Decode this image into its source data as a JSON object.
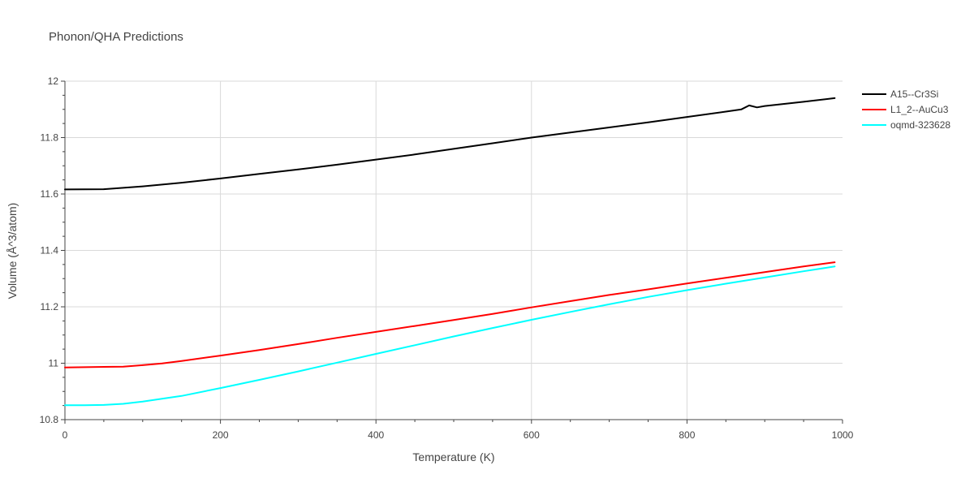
{
  "chart_data": {
    "type": "line",
    "title": "Phonon/QHA Predictions",
    "xlabel": "Temperature (K)",
    "ylabel": "Volume (Å^3/atom)",
    "xlim": [
      0,
      1000
    ],
    "ylim": [
      10.8,
      12
    ],
    "x_ticks": [
      0,
      200,
      400,
      600,
      800,
      1000
    ],
    "y_ticks": [
      10.8,
      11,
      11.2,
      11.4,
      11.6,
      11.8,
      12
    ],
    "x_tick_labels": [
      "0",
      "200",
      "400",
      "600",
      "800",
      "1000"
    ],
    "y_tick_labels": [
      "10.8",
      "11",
      "11.2",
      "11.4",
      "11.6",
      "11.8",
      "12"
    ],
    "grid": true,
    "legend": "right",
    "series": [
      {
        "name": "A15--Cr3Si",
        "color": "#000000",
        "x": [
          0,
          50,
          100,
          150,
          200,
          250,
          300,
          350,
          400,
          450,
          500,
          550,
          600,
          650,
          700,
          750,
          800,
          850,
          870,
          880,
          890,
          900,
          950,
          990
        ],
        "y": [
          11.616,
          11.617,
          11.627,
          11.64,
          11.655,
          11.671,
          11.687,
          11.704,
          11.722,
          11.74,
          11.76,
          11.78,
          11.8,
          11.818,
          11.836,
          11.854,
          11.873,
          11.892,
          11.9,
          11.914,
          11.907,
          11.912,
          11.927,
          11.94
        ]
      },
      {
        "name": "L1_2--AuCu3",
        "color": "#ff0000",
        "x": [
          0,
          25,
          50,
          75,
          100,
          125,
          150,
          200,
          250,
          300,
          350,
          400,
          450,
          500,
          550,
          600,
          650,
          700,
          750,
          800,
          850,
          900,
          950,
          990
        ],
        "y": [
          10.985,
          10.986,
          10.987,
          10.988,
          10.993,
          10.999,
          11.008,
          11.027,
          11.047,
          11.068,
          11.09,
          11.111,
          11.132,
          11.153,
          11.175,
          11.198,
          11.22,
          11.242,
          11.262,
          11.283,
          11.303,
          11.323,
          11.343,
          11.358
        ]
      },
      {
        "name": "oqmd-323628",
        "color": "#00ffff",
        "x": [
          0,
          25,
          50,
          75,
          100,
          150,
          200,
          250,
          300,
          350,
          400,
          450,
          500,
          550,
          600,
          650,
          700,
          750,
          800,
          850,
          900,
          950,
          990
        ],
        "y": [
          10.851,
          10.851,
          10.852,
          10.856,
          10.864,
          10.884,
          10.912,
          10.941,
          10.971,
          11.002,
          11.033,
          11.064,
          11.095,
          11.125,
          11.154,
          11.182,
          11.209,
          11.235,
          11.259,
          11.282,
          11.304,
          11.326,
          11.343
        ]
      }
    ]
  }
}
